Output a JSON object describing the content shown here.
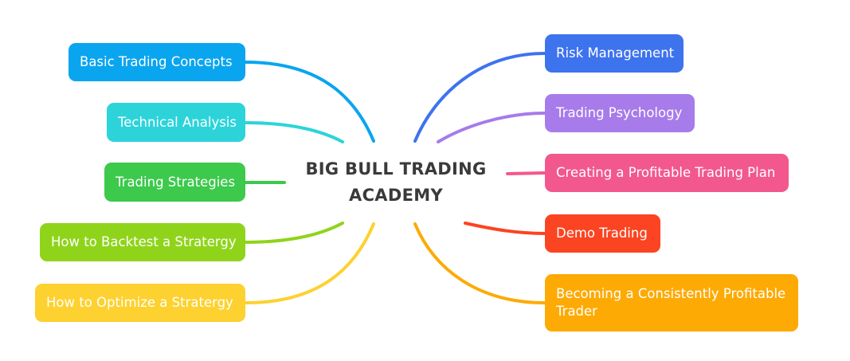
{
  "central": {
    "line1": "BIG BULL TRADING",
    "line2": "ACADEMY"
  },
  "left_topics": [
    {
      "label": "Basic Trading Concepts",
      "color": "#0AA5EF"
    },
    {
      "label": "Technical Analysis",
      "color": "#2CD4DA"
    },
    {
      "label": "Trading Strategies",
      "color": "#3CC94C"
    },
    {
      "label": "How to Backtest a Stratergy",
      "color": "#8FD41A"
    },
    {
      "label": "How to Optimize a Stratergy",
      "color": "#FDD12F"
    }
  ],
  "right_topics": [
    {
      "label": "Risk Management",
      "color": "#3E73EE"
    },
    {
      "label": "Trading Psychology",
      "color": "#A77BEA"
    },
    {
      "label": "Creating a Profitable Trading Plan",
      "color": "#F2588D"
    },
    {
      "label": "Demo Trading",
      "color": "#FB4421"
    },
    {
      "label": "Becoming a Consistently Profitable Trader",
      "color": "#FDAA05"
    }
  ]
}
